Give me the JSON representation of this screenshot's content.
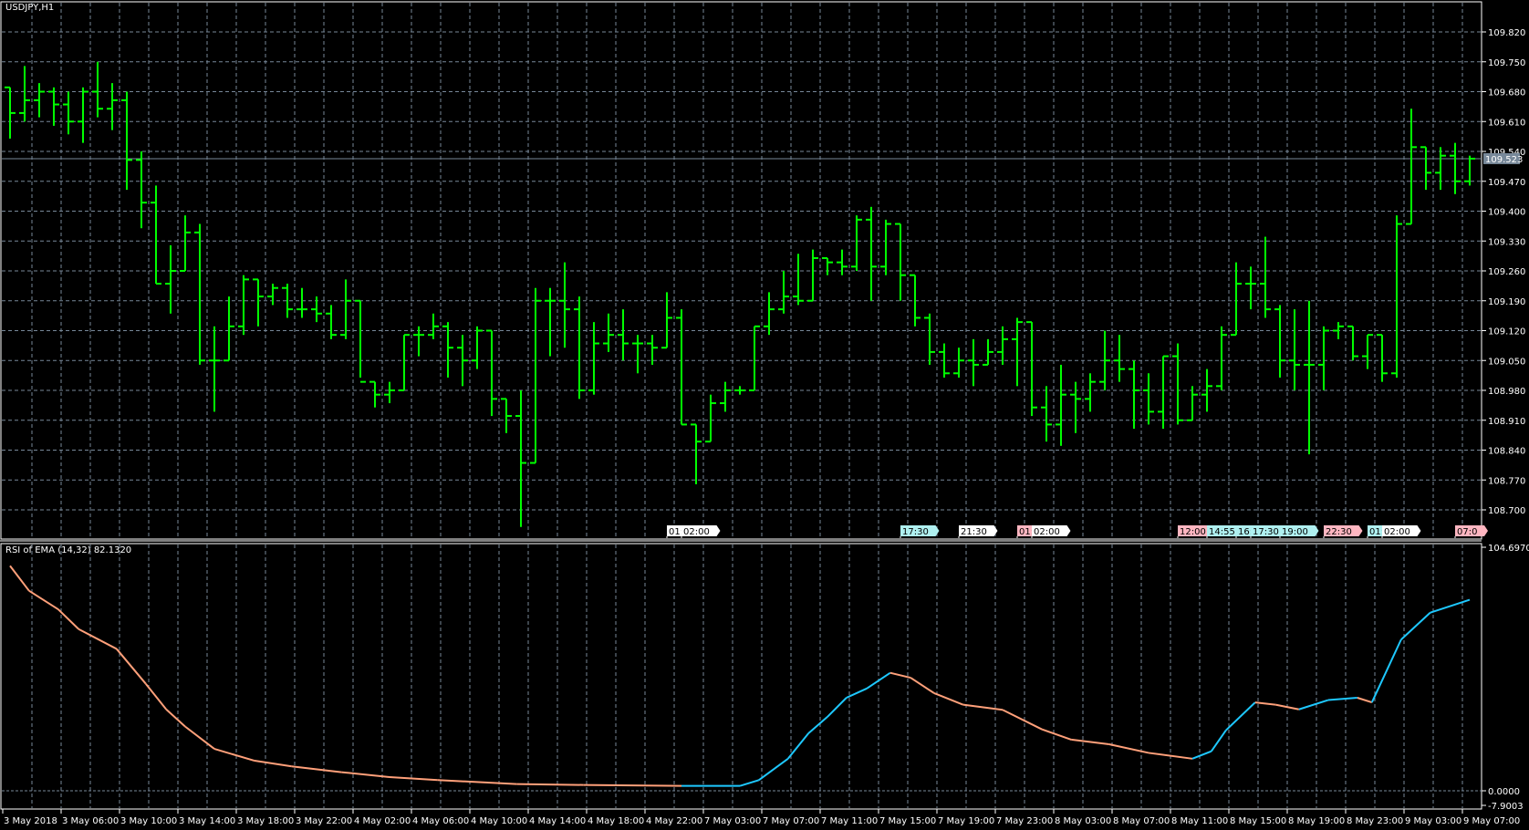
{
  "symbol_title": "USDJPY,H1",
  "indicator_title": "RSI of EMA (14,32) 82.1320",
  "colors": {
    "background": "#000000",
    "bars": "#00ff00",
    "grid": "#778899",
    "rsi_up": "#1ec8ff",
    "rsi_down": "#ffa07a",
    "price_tag": "#778899"
  },
  "current_price": "109.523",
  "price_axis": {
    "labels": [
      "109.820",
      "109.750",
      "109.680",
      "109.610",
      "109.540",
      "109.470",
      "109.400",
      "109.330",
      "109.260",
      "109.190",
      "109.120",
      "109.050",
      "108.980",
      "108.910",
      "108.840",
      "108.770",
      "108.700"
    ],
    "max": 109.82,
    "min": 108.7
  },
  "indicator_axis": {
    "max_label": "104.6970",
    "zero_label": "0.0000",
    "min_label": "-7.9003",
    "max": 104.697,
    "min": -7.9003
  },
  "time_axis": [
    "3 May 2018",
    "3 May 06:00",
    "3 May 10:00",
    "3 May 14:00",
    "3 May 18:00",
    "3 May 22:00",
    "4 May 02:00",
    "4 May 06:00",
    "4 May 10:00",
    "4 May 14:00",
    "4 May 18:00",
    "4 May 22:00",
    "7 May 03:00",
    "7 May 07:00",
    "7 May 11:00",
    "7 May 15:00",
    "7 May 19:00",
    "7 May 23:00",
    "8 May 03:00",
    "8 May 07:00",
    "8 May 11:00",
    "8 May 15:00",
    "8 May 19:00",
    "8 May 23:00",
    "9 May 03:00",
    "9 May 07:00"
  ],
  "events": [
    {
      "text": "01:",
      "color": "#ffffff",
      "bar": 45.5
    },
    {
      "text": "02:00",
      "color": "#ffffff",
      "bar": 46.5
    },
    {
      "text": "17:30",
      "color": "#aff0f0",
      "bar": 61.5
    },
    {
      "text": "21:30",
      "color": "#ffffff",
      "bar": 65.5
    },
    {
      "text": "01:",
      "color": "#ffb6c1",
      "bar": 69.5
    },
    {
      "text": "02:00",
      "color": "#ffffff",
      "bar": 70.5
    },
    {
      "text": "12:00",
      "color": "#ffb6c1",
      "bar": 80.5
    },
    {
      "text": "14:55",
      "color": "#aff0f0",
      "bar": 82.5
    },
    {
      "text": "16:",
      "color": "#aff0f0",
      "bar": 84.5
    },
    {
      "text": "17:30",
      "color": "#aff0f0",
      "bar": 85.5
    },
    {
      "text": "19:00",
      "color": "#aff0f0",
      "bar": 87.5
    },
    {
      "text": "22:30",
      "color": "#ffb6c1",
      "bar": 90.5
    },
    {
      "text": "01:",
      "color": "#aff0f0",
      "bar": 93.5
    },
    {
      "text": "02:00",
      "color": "#ffffff",
      "bar": 94.5
    },
    {
      "text": "07:0",
      "color": "#ffb6c1",
      "bar": 99.5
    }
  ],
  "chart_data": {
    "type": "ohlc",
    "ohlc_fields": [
      "open",
      "high",
      "low",
      "close"
    ],
    "bars": [
      [
        109.69,
        109.69,
        109.57,
        109.63
      ],
      [
        109.63,
        109.74,
        109.61,
        109.66
      ],
      [
        109.66,
        109.7,
        109.62,
        109.68
      ],
      [
        109.68,
        109.69,
        109.6,
        109.65
      ],
      [
        109.65,
        109.68,
        109.58,
        109.61
      ],
      [
        109.61,
        109.69,
        109.56,
        109.68
      ],
      [
        109.68,
        109.75,
        109.62,
        109.64
      ],
      [
        109.64,
        109.7,
        109.59,
        109.66
      ],
      [
        109.66,
        109.68,
        109.45,
        109.52
      ],
      [
        109.52,
        109.54,
        109.36,
        109.42
      ],
      [
        109.42,
        109.46,
        109.23,
        109.23
      ],
      [
        109.23,
        109.32,
        109.16,
        109.26
      ],
      [
        109.26,
        109.39,
        109.26,
        109.35
      ],
      [
        109.35,
        109.37,
        109.04,
        109.05
      ],
      [
        109.05,
        109.13,
        108.93,
        109.05
      ],
      [
        109.05,
        109.2,
        109.05,
        109.13
      ],
      [
        109.13,
        109.25,
        109.11,
        109.24
      ],
      [
        109.24,
        109.24,
        109.13,
        109.2
      ],
      [
        109.2,
        109.23,
        109.18,
        109.22
      ],
      [
        109.22,
        109.23,
        109.15,
        109.17
      ],
      [
        109.17,
        109.22,
        109.15,
        109.17
      ],
      [
        109.17,
        109.2,
        109.14,
        109.16
      ],
      [
        109.16,
        109.18,
        109.1,
        109.11
      ],
      [
        109.11,
        109.24,
        109.1,
        109.19
      ],
      [
        109.19,
        109.19,
        109.01,
        109.0
      ],
      [
        109.0,
        109.0,
        108.94,
        108.97
      ],
      [
        108.97,
        109.0,
        108.95,
        108.98
      ],
      [
        108.98,
        109.11,
        108.98,
        109.11
      ],
      [
        109.11,
        109.13,
        109.06,
        109.11
      ],
      [
        109.11,
        109.16,
        109.1,
        109.13
      ],
      [
        109.13,
        109.14,
        109.01,
        109.08
      ],
      [
        109.08,
        109.11,
        108.99,
        109.05
      ],
      [
        109.05,
        109.13,
        109.03,
        109.12
      ],
      [
        109.12,
        109.12,
        108.92,
        108.96
      ],
      [
        108.96,
        108.96,
        108.88,
        108.92
      ],
      [
        108.92,
        108.98,
        108.66,
        108.81
      ],
      [
        108.81,
        109.22,
        108.81,
        109.19
      ],
      [
        109.19,
        109.22,
        109.06,
        109.19
      ],
      [
        109.19,
        109.28,
        109.08,
        109.17
      ],
      [
        109.17,
        109.2,
        108.96,
        108.98
      ],
      [
        108.98,
        109.14,
        108.97,
        109.09
      ],
      [
        109.09,
        109.16,
        109.07,
        109.11
      ],
      [
        109.11,
        109.17,
        109.05,
        109.09
      ],
      [
        109.09,
        109.11,
        109.02,
        109.09
      ],
      [
        109.09,
        109.11,
        109.04,
        109.08
      ],
      [
        109.08,
        109.21,
        109.08,
        109.15
      ],
      [
        109.15,
        109.17,
        108.9,
        108.9
      ],
      [
        108.9,
        108.9,
        108.76,
        108.86
      ],
      [
        108.86,
        108.97,
        108.86,
        108.95
      ],
      [
        108.95,
        109.0,
        108.93,
        108.98
      ],
      [
        108.98,
        108.99,
        108.97,
        108.98
      ],
      [
        108.98,
        109.13,
        108.98,
        109.13
      ],
      [
        109.13,
        109.21,
        109.11,
        109.17
      ],
      [
        109.17,
        109.26,
        109.16,
        109.2
      ],
      [
        109.2,
        109.3,
        109.18,
        109.19
      ],
      [
        109.19,
        109.31,
        109.19,
        109.29
      ],
      [
        109.29,
        109.29,
        109.25,
        109.28
      ],
      [
        109.28,
        109.31,
        109.25,
        109.27
      ],
      [
        109.27,
        109.39,
        109.26,
        109.38
      ],
      [
        109.38,
        109.41,
        109.19,
        109.27
      ],
      [
        109.27,
        109.38,
        109.25,
        109.37
      ],
      [
        109.37,
        109.37,
        109.19,
        109.25
      ],
      [
        109.25,
        109.25,
        109.13,
        109.15
      ],
      [
        109.15,
        109.16,
        109.04,
        109.07
      ],
      [
        109.07,
        109.09,
        109.01,
        109.02
      ],
      [
        109.02,
        109.08,
        109.01,
        109.05
      ],
      [
        109.05,
        109.1,
        108.99,
        109.04
      ],
      [
        109.04,
        109.1,
        109.04,
        109.07
      ],
      [
        109.07,
        109.13,
        109.04,
        109.1
      ],
      [
        109.1,
        109.15,
        108.99,
        109.14
      ],
      [
        109.14,
        109.14,
        108.92,
        108.94
      ],
      [
        108.94,
        108.99,
        108.86,
        108.9
      ],
      [
        108.9,
        109.04,
        108.85,
        108.97
      ],
      [
        108.97,
        109.0,
        108.88,
        108.96
      ],
      [
        108.96,
        109.02,
        108.93,
        109.0
      ],
      [
        109.0,
        109.12,
        108.98,
        109.05
      ],
      [
        109.05,
        109.11,
        109.0,
        109.03
      ],
      [
        109.03,
        109.05,
        108.89,
        108.98
      ],
      [
        108.98,
        109.02,
        108.9,
        108.93
      ],
      [
        108.93,
        109.06,
        108.89,
        109.06
      ],
      [
        109.06,
        109.09,
        108.9,
        108.91
      ],
      [
        108.91,
        108.99,
        108.91,
        108.97
      ],
      [
        108.97,
        109.03,
        108.93,
        108.99
      ],
      [
        108.99,
        109.13,
        108.98,
        109.11
      ],
      [
        109.11,
        109.28,
        109.11,
        109.23
      ],
      [
        109.23,
        109.27,
        109.17,
        109.23
      ],
      [
        109.23,
        109.34,
        109.15,
        109.17
      ],
      [
        109.17,
        109.18,
        109.01,
        109.05
      ],
      [
        109.05,
        109.17,
        108.98,
        109.04
      ],
      [
        109.04,
        109.19,
        108.83,
        109.04
      ],
      [
        109.04,
        109.13,
        108.98,
        109.12
      ],
      [
        109.12,
        109.14,
        109.1,
        109.13
      ],
      [
        109.13,
        109.13,
        109.05,
        109.06
      ],
      [
        109.06,
        109.11,
        109.03,
        109.11
      ],
      [
        109.11,
        109.11,
        109.0,
        109.02
      ],
      [
        109.02,
        109.39,
        109.01,
        109.37
      ],
      [
        109.37,
        109.64,
        109.37,
        109.55
      ],
      [
        109.55,
        109.55,
        109.45,
        109.49
      ],
      [
        109.49,
        109.55,
        109.45,
        109.53
      ],
      [
        109.53,
        109.56,
        109.44,
        109.47
      ],
      [
        109.47,
        109.53,
        109.46,
        109.523
      ]
    ],
    "rsi": [
      [
        0,
        96.7
      ],
      [
        1.3,
        86
      ],
      [
        3.3,
        78
      ],
      [
        4.7,
        69.5
      ],
      [
        7.3,
        61
      ],
      [
        9.3,
        46
      ],
      [
        10.7,
        35
      ],
      [
        12,
        27.6
      ],
      [
        14,
        18
      ],
      [
        16.7,
        13
      ],
      [
        19.3,
        10.5
      ],
      [
        22.7,
        8
      ],
      [
        26,
        5.9
      ],
      [
        29.3,
        4.6
      ],
      [
        34.7,
        2.9
      ],
      [
        39.3,
        2.5
      ],
      [
        46,
        2.1
      ],
      [
        50,
        2.1
      ],
      [
        51.3,
        4.6
      ],
      [
        53.3,
        13.8
      ],
      [
        54.7,
        24.7
      ],
      [
        56,
        31.8
      ],
      [
        57.3,
        40
      ],
      [
        58.7,
        44
      ],
      [
        60.3,
        50.7
      ],
      [
        61.7,
        48.6
      ],
      [
        63.3,
        42
      ],
      [
        65.3,
        37
      ],
      [
        68,
        34.8
      ],
      [
        70.7,
        26.4
      ],
      [
        72.7,
        22
      ],
      [
        75.3,
        20
      ],
      [
        78,
        16.3
      ],
      [
        81,
        13.8
      ],
      [
        82.3,
        17
      ],
      [
        83.3,
        26
      ],
      [
        85.3,
        38
      ],
      [
        86.7,
        37
      ],
      [
        88.3,
        35
      ],
      [
        90.3,
        39
      ],
      [
        92.3,
        40
      ],
      [
        93.3,
        38
      ],
      [
        95.3,
        65
      ],
      [
        97.3,
        76.6
      ],
      [
        100,
        82.132
      ]
    ]
  }
}
